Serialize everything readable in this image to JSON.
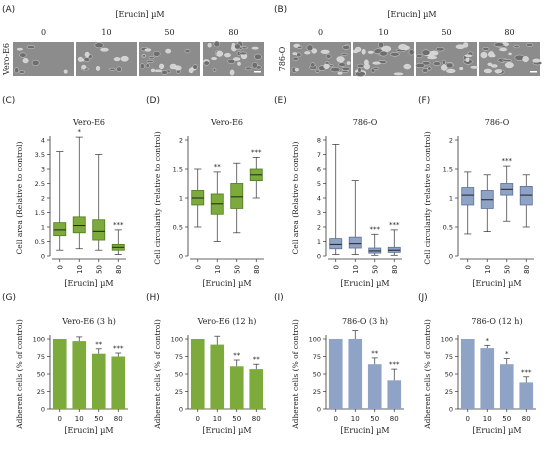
{
  "colors": {
    "green": "#7cab3c",
    "green_dark": "#4f7a1c",
    "blue": "#8fa3c6",
    "blue_dark": "#5b6f96",
    "axis": "#333333"
  },
  "microscopy": [
    {
      "label": "(A)",
      "header": "[Erucin]  µM",
      "cell_line": "Vero-E6",
      "concentrations": [
        "0",
        "10",
        "50",
        "80"
      ]
    },
    {
      "label": "(B)",
      "header": "[Erucin]  µM",
      "cell_line": "786-O",
      "concentrations": [
        "0",
        "10",
        "50",
        "80"
      ]
    }
  ],
  "xlabel_common": "[Erucin] µM",
  "chart_data": [
    {
      "panel": "(C)",
      "type": "box",
      "title": "Vero-E6",
      "xlabel": "[Erucin] µM",
      "ylabel": "Cell area  (Relative to control)",
      "categories": [
        "0",
        "10",
        "50",
        "80"
      ],
      "ylim": [
        0,
        4
      ],
      "yticks": [
        0,
        0.5,
        1,
        1.5,
        2,
        2.5,
        3,
        3.5,
        4
      ],
      "boxes": [
        {
          "min": 0.2,
          "q1": 0.7,
          "median": 0.9,
          "q3": 1.15,
          "max": 3.6
        },
        {
          "min": 0.25,
          "q1": 0.8,
          "median": 1.05,
          "q3": 1.35,
          "max": 4.1
        },
        {
          "min": 0.2,
          "q1": 0.55,
          "median": 0.85,
          "q3": 1.25,
          "max": 3.5
        },
        {
          "min": 0.05,
          "q1": 0.2,
          "median": 0.3,
          "q3": 0.4,
          "max": 0.9
        }
      ],
      "significance": [
        "",
        "*",
        "",
        "***"
      ],
      "color": "green"
    },
    {
      "panel": "(D)",
      "type": "box",
      "title": "Vero-E6",
      "xlabel": "[Erucin] µM",
      "ylabel": "Cell circularity  (relative to control)",
      "categories": [
        "0",
        "10",
        "50",
        "80"
      ],
      "ylim": [
        0,
        2
      ],
      "yticks": [
        0,
        0.5,
        1,
        1.5,
        2
      ],
      "boxes": [
        {
          "min": 0.5,
          "q1": 0.88,
          "median": 1.0,
          "q3": 1.13,
          "max": 1.5
        },
        {
          "min": 0.25,
          "q1": 0.72,
          "median": 0.9,
          "q3": 1.07,
          "max": 1.45
        },
        {
          "min": 0.4,
          "q1": 0.82,
          "median": 1.02,
          "q3": 1.25,
          "max": 1.6
        },
        {
          "min": 1.0,
          "q1": 1.3,
          "median": 1.4,
          "q3": 1.5,
          "max": 1.7
        }
      ],
      "significance": [
        "",
        "**",
        "",
        "***"
      ],
      "color": "green"
    },
    {
      "panel": "(E)",
      "type": "box",
      "title": "786-O",
      "xlabel": "[Erucin] µM",
      "ylabel": "Cell area  (Relative to control)",
      "categories": [
        "0",
        "10",
        "50",
        "80"
      ],
      "ylim": [
        0,
        8
      ],
      "yticks": [
        0,
        1,
        2,
        3,
        4,
        5,
        6,
        7,
        8
      ],
      "boxes": [
        {
          "min": 0.1,
          "q1": 0.5,
          "median": 0.8,
          "q3": 1.2,
          "max": 7.7
        },
        {
          "min": 0.1,
          "q1": 0.55,
          "median": 0.85,
          "q3": 1.3,
          "max": 5.2
        },
        {
          "min": 0.05,
          "q1": 0.2,
          "median": 0.35,
          "q3": 0.55,
          "max": 1.5
        },
        {
          "min": 0.05,
          "q1": 0.25,
          "median": 0.4,
          "q3": 0.6,
          "max": 1.8
        }
      ],
      "significance": [
        "",
        "",
        "***",
        "***"
      ],
      "color": "blue"
    },
    {
      "panel": "(F)",
      "type": "box",
      "title": "786-O",
      "xlabel": "[Erucin] µM",
      "ylabel": "Cell circularity  (relative to control)",
      "categories": [
        "0",
        "10",
        "50",
        "80"
      ],
      "ylim": [
        0,
        2
      ],
      "yticks": [
        0,
        0.5,
        1,
        1.5,
        2
      ],
      "boxes": [
        {
          "min": 0.38,
          "q1": 0.88,
          "median": 1.05,
          "q3": 1.18,
          "max": 1.45
        },
        {
          "min": 0.42,
          "q1": 0.82,
          "median": 0.97,
          "q3": 1.13,
          "max": 1.4
        },
        {
          "min": 0.6,
          "q1": 1.05,
          "median": 1.15,
          "q3": 1.25,
          "max": 1.55
        },
        {
          "min": 0.5,
          "q1": 0.88,
          "median": 1.05,
          "q3": 1.2,
          "max": 1.4
        }
      ],
      "significance": [
        "",
        "",
        "***",
        ""
      ],
      "color": "blue"
    },
    {
      "panel": "(G)",
      "type": "bar",
      "title": "Vero-E6 (3 h)",
      "xlabel": "[Erucin] µM",
      "ylabel": "Adherent cells (% of control)",
      "categories": [
        "0",
        "10",
        "50",
        "80"
      ],
      "values": [
        100,
        97,
        79,
        75
      ],
      "errors": [
        0,
        6,
        7,
        5
      ],
      "ylim": [
        0,
        100
      ],
      "yticks": [
        0,
        25,
        50,
        75,
        100
      ],
      "significance": [
        "",
        "",
        "**",
        "***"
      ],
      "color": "green"
    },
    {
      "panel": "(H)",
      "type": "bar",
      "title": "Vero-E6 (12 h)",
      "xlabel": "[Erucin] µM",
      "ylabel": "Adherent cells (% of control)",
      "categories": [
        "0",
        "10",
        "50",
        "80"
      ],
      "values": [
        100,
        92,
        61,
        57
      ],
      "errors": [
        0,
        12,
        9,
        7
      ],
      "ylim": [
        0,
        100
      ],
      "yticks": [
        0,
        25,
        50,
        75,
        100
      ],
      "significance": [
        "",
        "",
        "**",
        "**"
      ],
      "color": "green"
    },
    {
      "panel": "(I)",
      "type": "bar",
      "title": "786-O (3 h)",
      "xlabel": "[Erucin] µM",
      "ylabel": "Adherent cells (% of control)",
      "categories": [
        "0",
        "10",
        "50",
        "80"
      ],
      "values": [
        100,
        100,
        64,
        41
      ],
      "errors": [
        0,
        12,
        9,
        16
      ],
      "ylim": [
        0,
        100
      ],
      "yticks": [
        0,
        25,
        50,
        75,
        100
      ],
      "significance": [
        "",
        "",
        "**",
        "***"
      ],
      "color": "blue"
    },
    {
      "panel": "(J)",
      "type": "bar",
      "title": "786-O (12 h)",
      "xlabel": "[Erucin] µM",
      "ylabel": "Adherent cells (% of control)",
      "categories": [
        "0",
        "10",
        "50",
        "80"
      ],
      "values": [
        100,
        87,
        64,
        38
      ],
      "errors": [
        0,
        4,
        8,
        8
      ],
      "ylim": [
        0,
        100
      ],
      "yticks": [
        0,
        25,
        50,
        75,
        100
      ],
      "significance": [
        "",
        "*",
        "*",
        "***"
      ],
      "color": "blue"
    }
  ]
}
